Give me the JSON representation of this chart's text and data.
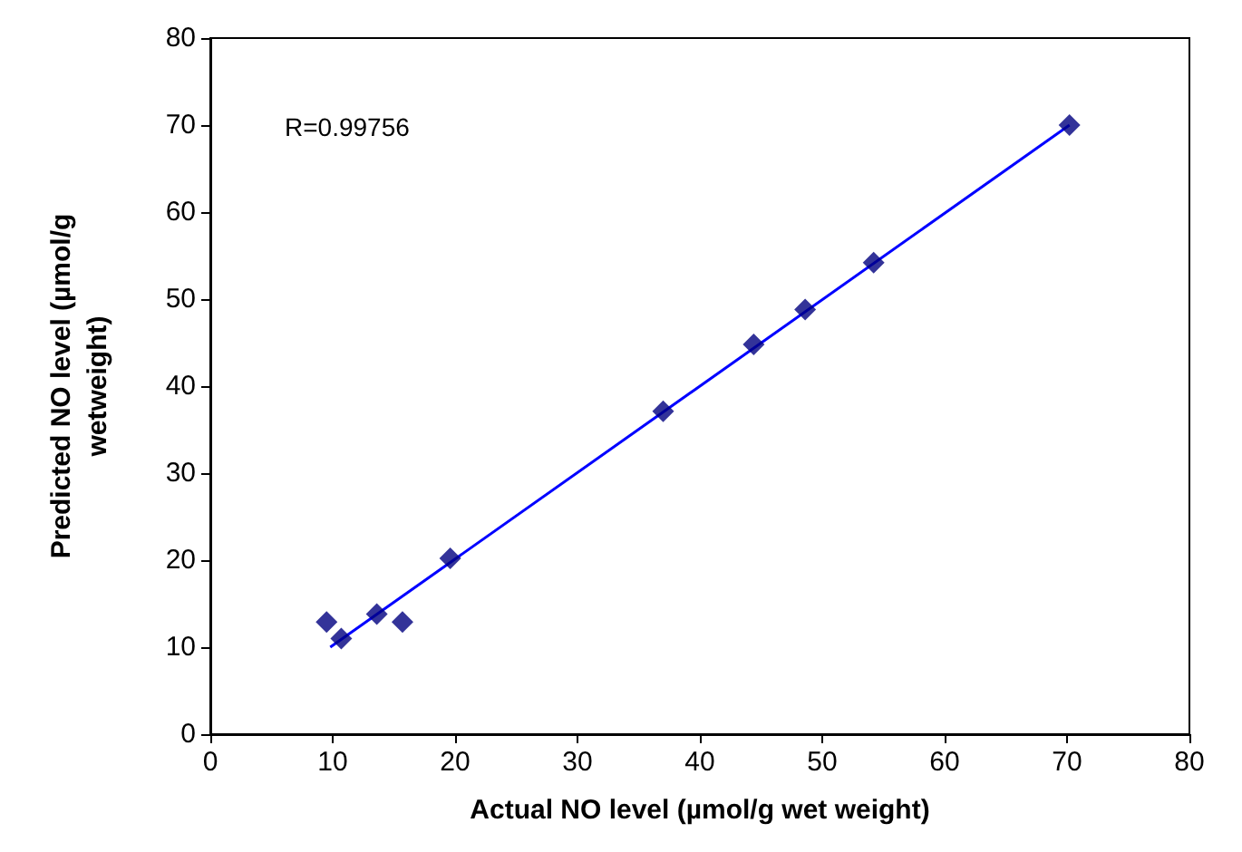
{
  "chart_data": {
    "type": "scatter",
    "xlabel": "Actual NO level (µmol/g wet weight)",
    "ylabel": "Predicted NO level (µmol/g wetweight)",
    "xlim": [
      0,
      80
    ],
    "xticks": [
      0,
      10,
      20,
      30,
      40,
      50,
      60,
      70,
      80
    ],
    "ylim": [
      0,
      80
    ],
    "yticks": [
      0,
      10,
      20,
      30,
      40,
      50,
      60,
      70,
      80
    ],
    "grid": false,
    "marker": "diamond",
    "annotations": [
      "R=0.99756"
    ],
    "series": [
      {
        "color": "#000080",
        "x": [
          9.5,
          10.7,
          13.6,
          15.7,
          19.6,
          37.0,
          44.4,
          48.6,
          54.2,
          70.2
        ],
        "values": [
          12.9,
          11.0,
          13.8,
          12.9,
          20.2,
          37.1,
          44.8,
          48.8,
          54.2,
          70.0
        ]
      },
      {
        "type": "line",
        "color": "#0000ff",
        "marker": "none",
        "x": [
          9.8,
          70.2
        ],
        "values": [
          10.0,
          70.0
        ]
      }
    ]
  }
}
